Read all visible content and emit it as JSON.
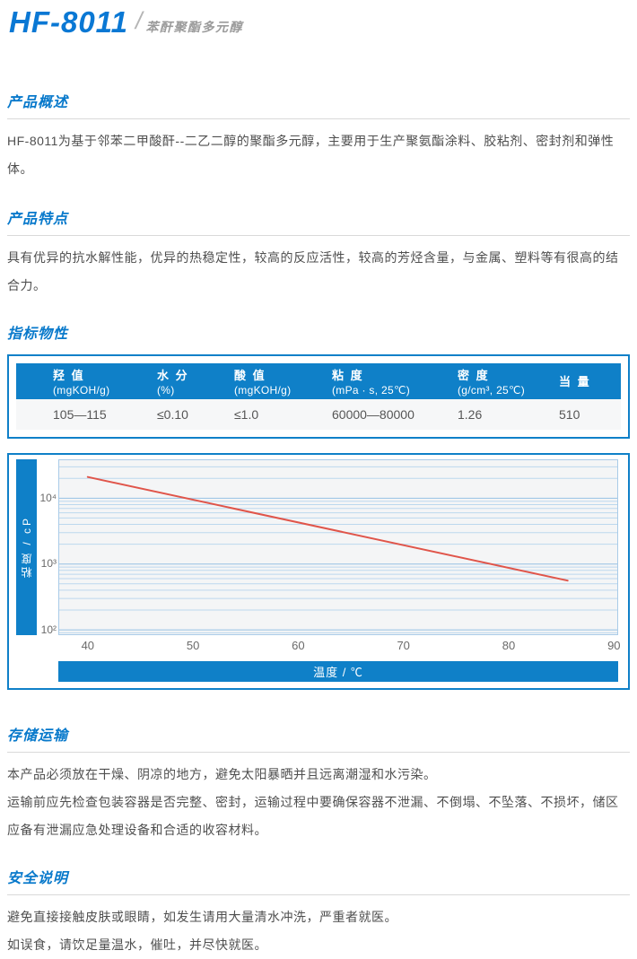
{
  "page": {
    "title": "HF-8011",
    "slash": "/",
    "subtitle": "苯酐聚酯多元醇"
  },
  "sections": {
    "overview": {
      "heading": "产品概述",
      "body": "HF-8011为基于邻苯二甲酸酐--二乙二醇的聚酯多元醇，主要用于生产聚氨酯涂料、胶粘剂、密封剂和弹性体。"
    },
    "features": {
      "heading": "产品特点",
      "body": "具有优异的抗水解性能，优异的热稳定性，较高的反应活性，较高的芳烃含量，与金属、塑料等有很高的结合力。"
    },
    "properties": {
      "heading": "指标物性"
    },
    "storage": {
      "heading": "存储运输",
      "p1": "本产品必须放在干燥、阴凉的地方，避免太阳暴晒并且远离潮湿和水污染。",
      "p2": "运输前应先检查包装容器是否完整、密封，运输过程中要确保容器不泄漏、不倒塌、不坠落、不损坏，储区应备有泄漏应急处理设备和合适的收容材料。"
    },
    "safety": {
      "heading": "安全说明",
      "p1": "避免直接接触皮肤或眼睛，如发生请用大量清水冲洗，严重者就医。",
      "p2": "如误食，请饮足量温水，催吐，并尽快就医。"
    }
  },
  "properties_table": {
    "columns": [
      {
        "name": "羟 值",
        "unit": "(mgKOH/g)",
        "value": "105—115"
      },
      {
        "name": "水 分",
        "unit": "(%)",
        "value": "≤0.10"
      },
      {
        "name": "酸 值",
        "unit": "(mgKOH/g)",
        "value": "≤1.0"
      },
      {
        "name": "粘 度",
        "unit": "(mPa · s, 25℃)",
        "value": "60000—80000"
      },
      {
        "name": "密 度",
        "unit": "(g/cm³, 25℃)",
        "value": "1.26"
      },
      {
        "name": "当 量",
        "unit": "",
        "value": "510"
      }
    ]
  },
  "chart_data": {
    "type": "line",
    "title": "",
    "xlabel": "温度 / ℃",
    "ylabel": "粘度 / cP",
    "x_ticks": [
      40,
      50,
      60,
      70,
      80,
      90
    ],
    "y_ticks": [
      {
        "label": "10⁴",
        "value": 10000
      },
      {
        "label": "10³",
        "value": 1000
      },
      {
        "label": "10²",
        "value": 100
      }
    ],
    "xlim": [
      37.2,
      90.4
    ],
    "ylim": [
      83,
      39000
    ],
    "y_scale": "log",
    "grid": "horizontal log major+minor",
    "legend": "none",
    "series": [
      {
        "name": "粘度-温度曲线",
        "color": "#e0554a",
        "points": [
          [
            40,
            21000
          ],
          [
            85.6,
            560
          ]
        ]
      }
    ]
  },
  "colors": {
    "brand_blue": "#0f80c8",
    "title_blue": "#0a78d4",
    "heading_blue": "#0879cb",
    "subtitle_gray": "#9b9b9b",
    "body_text": "#4f4f4f",
    "divider": "#d9d9d9",
    "table_row_bg": "#f6f7f8",
    "plot_bg": "#f4f5f6",
    "grid_major": "#96c2e4",
    "grid_minor": "#bcd8ee",
    "line_red": "#e0554a",
    "tick_gray": "#6a6a6a"
  }
}
